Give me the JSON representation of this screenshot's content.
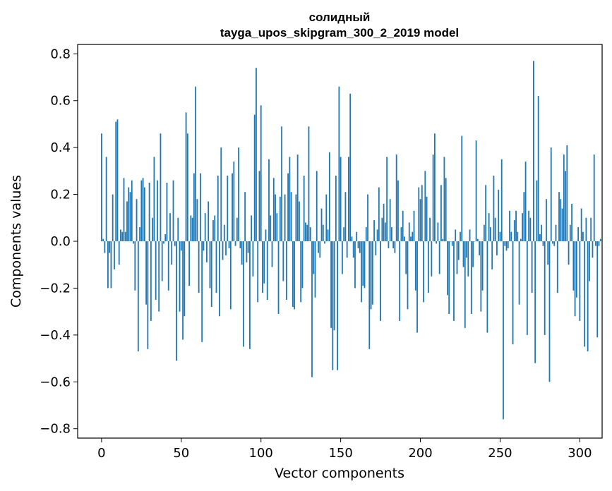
{
  "chart_data": {
    "type": "bar",
    "title_line1": "солидный",
    "title_line2": "tayga_upos_skipgram_300_2_2019 model",
    "xlabel": "Vector components",
    "ylabel": "Components values",
    "xlim": [
      -15,
      314
    ],
    "ylim": [
      -0.84,
      0.84
    ],
    "xticks": [
      0,
      50,
      100,
      150,
      200,
      250,
      300
    ],
    "xtick_labels": [
      "0",
      "50",
      "100",
      "150",
      "200",
      "250",
      "300"
    ],
    "yticks": [
      -0.8,
      -0.6,
      -0.4,
      -0.2,
      0.0,
      0.2,
      0.4,
      0.6,
      0.8
    ],
    "ytick_labels": [
      "−0.8",
      "−0.6",
      "−0.4",
      "−0.2",
      "0.0",
      "0.2",
      "0.4",
      "0.6",
      "0.8"
    ],
    "bar_color": "#1f77b4",
    "grid": false,
    "values": [
      0.46,
      0.01,
      -0.05,
      0.36,
      -0.2,
      -0.05,
      -0.2,
      0.2,
      -0.12,
      0.51,
      0.52,
      -0.1,
      0.05,
      0.04,
      0.27,
      0.04,
      0.17,
      0.23,
      0.21,
      0.26,
      -0.01,
      -0.21,
      0.18,
      -0.47,
      0.06,
      0.26,
      0.27,
      0.23,
      -0.27,
      -0.46,
      0.25,
      -0.34,
      0.1,
      0.36,
      -0.25,
      0.26,
      -0.3,
      0.46,
      -0.17,
      -0.01,
      0.03,
      0.25,
      -0.21,
      0.12,
      -0.1,
      0.26,
      -0.02,
      -0.51,
      0.1,
      -0.3,
      -0.04,
      -0.42,
      -0.32,
      0.55,
      0.46,
      -0.19,
      0.11,
      0.1,
      0.29,
      0.66,
      0.18,
      -0.22,
      0.29,
      -0.43,
      -0.04,
      0.12,
      -0.09,
      0.17,
      -0.2,
      -0.28,
      0.09,
      0.11,
      -0.22,
      0.28,
      -0.32,
      0.4,
      -0.08,
      0.07,
      -0.06,
      0.28,
      -0.03,
      -0.29,
      0.29,
      0.34,
      -0.02,
      0.1,
      0.4,
      -0.03,
      -0.1,
      -0.45,
      0.21,
      -0.09,
      -0.05,
      -0.46,
      0.11,
      -0.15,
      0.54,
      0.74,
      -0.26,
      0.3,
      0.58,
      -0.22,
      -0.18,
      0.05,
      -0.25,
      0.35,
      0.11,
      -0.11,
      0.27,
      0.2,
      0.12,
      -0.31,
      0.19,
      0.49,
      -0.17,
      0.2,
      -0.25,
      0.29,
      0.36,
      0.21,
      -0.28,
      -0.29,
      0.2,
      0.37,
      0.17,
      -0.26,
      -0.2,
      0.28,
      0.08,
      0.07,
      0.49,
      0.06,
      -0.58,
      -0.14,
      -0.24,
      0.3,
      -0.05,
      -0.07,
      0.14,
      0.07,
      -0.01,
      0.2,
      0.05,
      0.38,
      -0.37,
      -0.55,
      -0.38,
      0.28,
      -0.55,
      0.66,
      0.36,
      -0.14,
      0.06,
      0.21,
      -0.07,
      0.36,
      0.63,
      0.02,
      -0.07,
      -0.2,
      0.04,
      -0.03,
      -0.05,
      -0.26,
      -0.19,
      -0.2,
      0.06,
      0.2,
      -0.46,
      -0.29,
      -0.27,
      0.09,
      -0.06,
      0.05,
      0.23,
      -0.34,
      0.1,
      0.16,
      0.08,
      0.36,
      -0.03,
      0.18,
      0.06,
      -0.03,
      -0.05,
      0.37,
      0.26,
      -0.34,
      0.06,
      0.13,
      0.02,
      -0.14,
      -0.29,
      0.08,
      0.02,
      0.04,
      0.13,
      -0.21,
      -0.39,
      0.23,
      0.18,
      0.24,
      -0.26,
      0.3,
      0.19,
      -0.22,
      0.1,
      -0.15,
      0.37,
      0.46,
      -0.01,
      0.08,
      -0.14,
      0.24,
      0.01,
      0.36,
      0.27,
      -0.23,
      -0.31,
      0.0,
      -0.02,
      -0.34,
      0.05,
      -0.14,
      -0.08,
      0.04,
      0.45,
      -0.11,
      -0.37,
      -0.07,
      -0.15,
      0.05,
      -0.31,
      -0.11,
      0.0,
      0.43,
      0.01,
      -0.06,
      -0.3,
      -0.21,
      0.07,
      0.24,
      -0.39,
      0.12,
      0.06,
      -0.12,
      0.28,
      0.1,
      -0.06,
      0.22,
      0.04,
      0.35,
      -0.76,
      -0.02,
      -0.04,
      -0.03,
      0.13,
      0.04,
      -0.44,
      0.09,
      0.13,
      0.04,
      -0.27,
      0.01,
      0.12,
      0.21,
      0.34,
      -0.4,
      0.13,
      0.1,
      -0.22,
      0.77,
      -0.52,
      0.26,
      0.62,
      0.03,
      0.07,
      -0.02,
      -0.4,
      0.18,
      -0.1,
      -0.6,
      0.4,
      -0.01,
      -0.02,
      0.07,
      -0.22,
      0.21,
      0.18,
      0.14,
      0.37,
      0.3,
      0.41,
      -0.1,
      0.07,
      0.16,
      -0.21,
      -0.32,
      -0.24,
      0.06,
      -0.34,
      0.14,
      0.04,
      -0.45,
      0.1,
      -0.47,
      -0.17,
      0.1,
      -0.07,
      0.37,
      -0.02,
      -0.41,
      -0.02,
      0.01
    ],
    "tick_marks_outward": true
  }
}
